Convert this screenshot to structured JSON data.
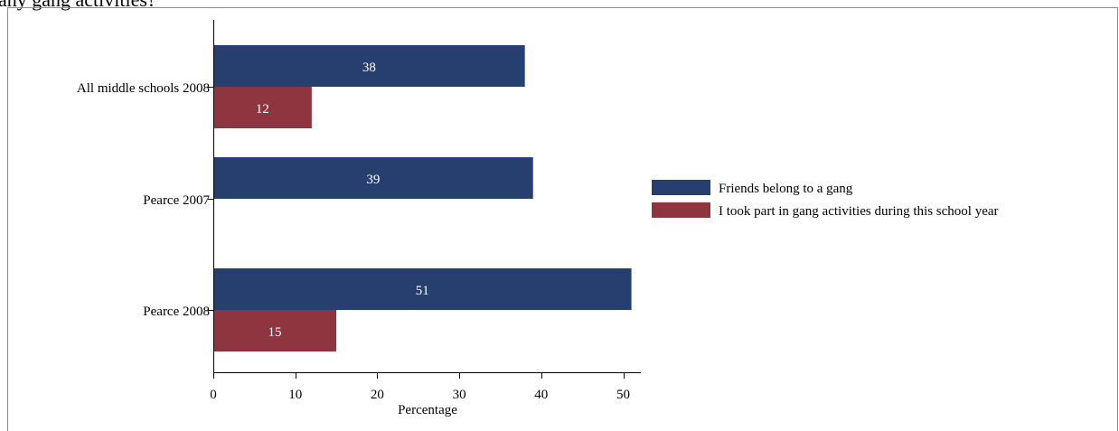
{
  "title_fragment": "any gang activities?",
  "chart_data": {
    "type": "bar",
    "orientation": "horizontal",
    "categories": [
      "All middle schools 2008",
      "Pearce 2007",
      "Pearce 2008"
    ],
    "series": [
      {
        "name": "Friends belong to a gang",
        "color": "#263f6e",
        "values": [
          38,
          39,
          51
        ]
      },
      {
        "name": "I took part in gang activities during this school year",
        "color": "#8f3540",
        "values": [
          12,
          null,
          15
        ]
      }
    ],
    "xlabel": "Percentage",
    "xlim": [
      0,
      52.5
    ],
    "xticks": [
      0,
      10,
      20,
      30,
      40,
      50
    ],
    "legend_position": "right",
    "data_labels": true,
    "grid": false
  }
}
